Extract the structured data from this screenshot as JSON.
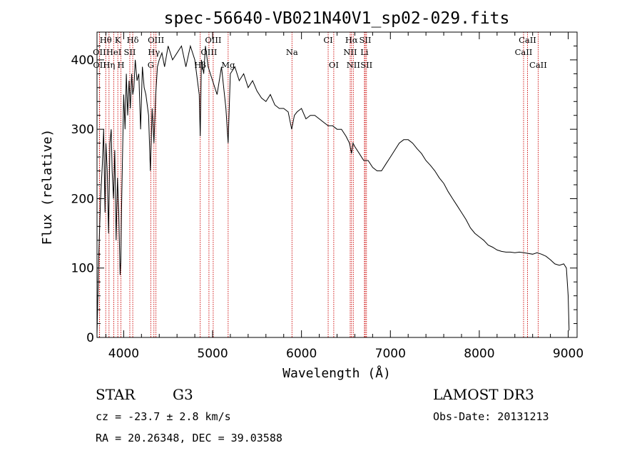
{
  "chart_data": {
    "type": "line",
    "title": "spec-56640-VB021N40V1_sp02-029.fits",
    "xlabel": "Wavelength (Å)",
    "ylabel": "Flux (relative)",
    "xlim": [
      3700,
      9100
    ],
    "ylim": [
      0,
      440
    ],
    "xticks": [
      4000,
      5000,
      6000,
      7000,
      8000,
      9000
    ],
    "yticks": [
      0,
      100,
      200,
      300,
      400
    ],
    "series": [
      {
        "name": "spectrum",
        "x": [
          3700,
          3720,
          3740,
          3760,
          3775,
          3790,
          3800,
          3815,
          3830,
          3845,
          3860,
          3870,
          3885,
          3900,
          3915,
          3930,
          3945,
          3960,
          3968,
          3975,
          3990,
          4000,
          4015,
          4030,
          4045,
          4060,
          4075,
          4090,
          4102,
          4115,
          4130,
          4150,
          4170,
          4190,
          4210,
          4230,
          4250,
          4280,
          4300,
          4320,
          4340,
          4360,
          4380,
          4400,
          4430,
          4460,
          4500,
          4550,
          4600,
          4650,
          4700,
          4750,
          4800,
          4850,
          4861,
          4875,
          4900,
          4920,
          4950,
          5000,
          5050,
          5100,
          5150,
          5175,
          5200,
          5250,
          5300,
          5350,
          5400,
          5450,
          5500,
          5550,
          5600,
          5650,
          5700,
          5750,
          5800,
          5850,
          5890,
          5920,
          5950,
          6000,
          6050,
          6100,
          6150,
          6200,
          6250,
          6300,
          6350,
          6400,
          6450,
          6500,
          6540,
          6563,
          6580,
          6600,
          6650,
          6700,
          6750,
          6800,
          6850,
          6900,
          6950,
          7000,
          7050,
          7100,
          7150,
          7200,
          7250,
          7300,
          7350,
          7400,
          7450,
          7500,
          7550,
          7600,
          7650,
          7700,
          7750,
          7800,
          7850,
          7900,
          7950,
          8000,
          8050,
          8100,
          8150,
          8200,
          8250,
          8300,
          8350,
          8400,
          8450,
          8500,
          8550,
          8600,
          8650,
          8700,
          8750,
          8800,
          8850,
          8900,
          8950,
          8980,
          9000,
          9010
        ],
        "y": [
          5,
          120,
          200,
          250,
          300,
          180,
          280,
          240,
          150,
          280,
          300,
          240,
          200,
          270,
          140,
          230,
          180,
          90,
          110,
          180,
          280,
          350,
          300,
          380,
          320,
          370,
          330,
          380,
          350,
          360,
          400,
          370,
          380,
          300,
          390,
          360,
          350,
          320,
          240,
          330,
          280,
          350,
          390,
          400,
          410,
          390,
          420,
          400,
          410,
          420,
          390,
          420,
          400,
          350,
          290,
          400,
          380,
          420,
          390,
          370,
          350,
          390,
          330,
          280,
          380,
          390,
          370,
          380,
          360,
          370,
          355,
          345,
          340,
          350,
          335,
          330,
          330,
          325,
          300,
          320,
          325,
          330,
          315,
          320,
          320,
          315,
          310,
          305,
          305,
          300,
          300,
          290,
          280,
          265,
          280,
          275,
          265,
          255,
          255,
          245,
          240,
          240,
          250,
          260,
          270,
          280,
          285,
          285,
          280,
          272,
          265,
          255,
          248,
          240,
          230,
          222,
          210,
          200,
          190,
          180,
          170,
          158,
          150,
          145,
          140,
          133,
          130,
          126,
          124,
          123,
          123,
          122,
          123,
          122,
          121,
          120,
          122,
          120,
          117,
          112,
          106,
          104,
          106,
          100,
          60,
          10
        ]
      }
    ],
    "line_markers": [
      {
        "label": "Hθ",
        "x": 3798,
        "row": 0
      },
      {
        "label": "K",
        "x": 3934,
        "row": 0
      },
      {
        "label": "Hδ",
        "x": 4102,
        "row": 0
      },
      {
        "label": "OIII",
        "x": 4363,
        "row": 0
      },
      {
        "label": "OIII",
        "x": 5007,
        "row": 0
      },
      {
        "label": "CI",
        "x": 6300,
        "row": 0
      },
      {
        "label": "Hα",
        "x": 6563,
        "row": 0
      },
      {
        "label": "SII",
        "x": 6717,
        "row": 0
      },
      {
        "label": "CaII",
        "x": 8542,
        "row": 0
      },
      {
        "label": "OII",
        "x": 3727,
        "row": 1
      },
      {
        "label": "HeI",
        "x": 3889,
        "row": 1
      },
      {
        "label": "SII",
        "x": 4069,
        "row": 1
      },
      {
        "label": "Hγ",
        "x": 4340,
        "row": 1
      },
      {
        "label": "OIII",
        "x": 4959,
        "row": 1
      },
      {
        "label": "Na",
        "x": 5893,
        "row": 1
      },
      {
        "label": "NII",
        "x": 6548,
        "row": 1
      },
      {
        "label": "Li",
        "x": 6708,
        "row": 1
      },
      {
        "label": "CaII",
        "x": 8498,
        "row": 1
      },
      {
        "label": "OII",
        "x": 3729,
        "row": 2
      },
      {
        "label": "Hη",
        "x": 3835,
        "row": 2
      },
      {
        "label": "H",
        "x": 3969,
        "row": 2
      },
      {
        "label": "G",
        "x": 4305,
        "row": 2
      },
      {
        "label": "Hβ",
        "x": 4861,
        "row": 2
      },
      {
        "label": "Mg",
        "x": 5175,
        "row": 2
      },
      {
        "label": "OI",
        "x": 6363,
        "row": 2
      },
      {
        "label": "NII",
        "x": 6583,
        "row": 2
      },
      {
        "label": "SII",
        "x": 6731,
        "row": 2
      },
      {
        "label": "CaII",
        "x": 8662,
        "row": 2
      }
    ],
    "marker_color": "#cc0000"
  },
  "info": {
    "class": "STAR",
    "subclass": "G3",
    "survey": "LAMOST DR3",
    "cz": "cz = -23.7 ± 2.8 km/s",
    "obs_date": "Obs-Date: 20131213",
    "coords": "RA =  20.26348, DEC =  39.03588"
  }
}
